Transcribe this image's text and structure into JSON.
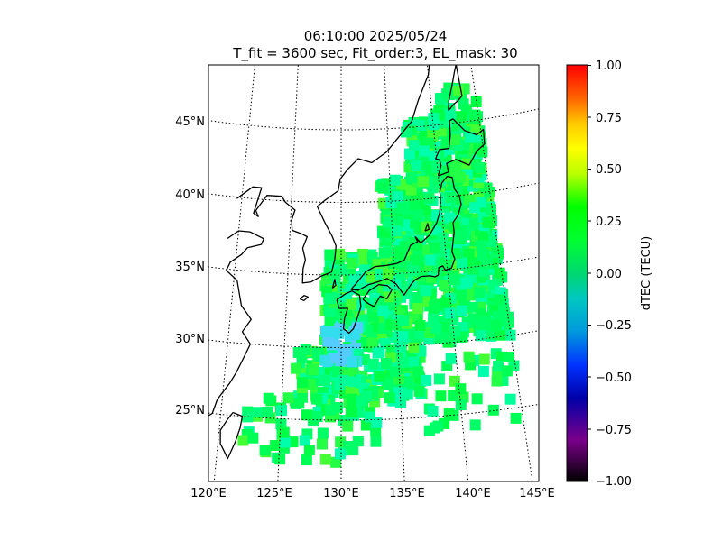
{
  "title": {
    "line1": "06:10:00 2025/05/24",
    "line2": "T_fit = 3600 sec, Fit_order:3, EL_mask: 30"
  },
  "map": {
    "lon_range": [
      120,
      145
    ],
    "lat_range": [
      20,
      49
    ],
    "lat_ticks": [
      {
        "lat": 45,
        "label": "45°N"
      },
      {
        "lat": 40,
        "label": "40°N"
      },
      {
        "lat": 35,
        "label": "35°N"
      },
      {
        "lat": 30,
        "label": "30°N"
      },
      {
        "lat": 25,
        "label": "25°N"
      }
    ],
    "lon_ticks": [
      {
        "lon": 120,
        "label": "120°E"
      },
      {
        "lon": 125,
        "label": "125°E"
      },
      {
        "lon": 130,
        "label": "130°E"
      },
      {
        "lon": 135,
        "label": "135°E"
      },
      {
        "lon": 140,
        "label": "140°E"
      },
      {
        "lon": 145,
        "label": "145°E"
      }
    ]
  },
  "colorbar": {
    "label": "dTEC (TECU)",
    "min": -1.0,
    "max": 1.0,
    "ticks": [
      "1.00",
      "0.75",
      "0.50",
      "0.25",
      "0.00",
      "−0.25",
      "−0.50",
      "−0.75",
      "−1.00"
    ],
    "colormap": "nipy_spectral-like"
  },
  "colors": {
    "dominant": "#00ff55",
    "cyan": "#00ffcc",
    "light_blue": "#55ccff"
  }
}
